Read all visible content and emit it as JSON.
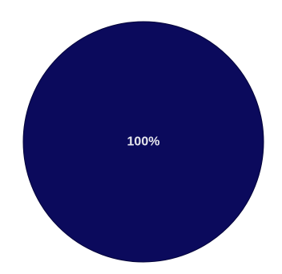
{
  "chart_data": {
    "type": "pie",
    "title": "",
    "legend": "none",
    "slices": [
      {
        "value": 100,
        "label": "100%",
        "color": "#0b0a5c"
      }
    ]
  },
  "colors": {
    "slice_outline": "#05053a",
    "label_text": "#e8e8ee",
    "background": "#ffffff"
  }
}
